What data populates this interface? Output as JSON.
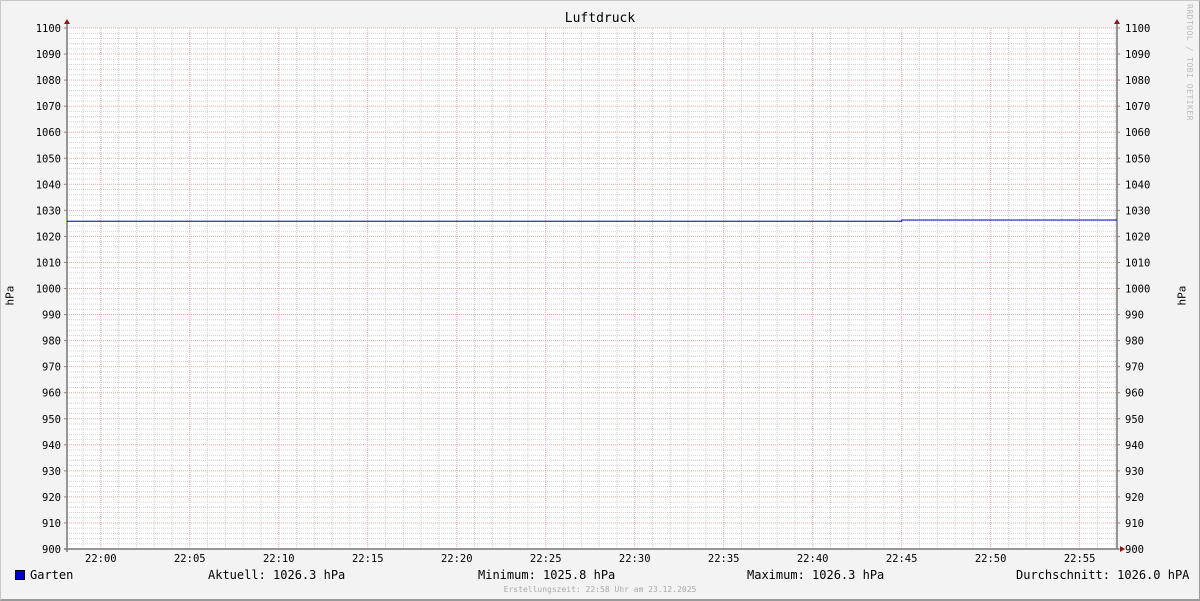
{
  "chart_data": {
    "type": "line",
    "title": "Luftdruck",
    "ylabel": "hPa",
    "ylabel_right": "hPa",
    "ylim": [
      900,
      1100
    ],
    "y_ticks": [
      900,
      910,
      920,
      930,
      940,
      950,
      960,
      970,
      980,
      990,
      1000,
      1010,
      1020,
      1030,
      1040,
      1050,
      1060,
      1070,
      1080,
      1090,
      1100
    ],
    "xlim": [
      "21:58",
      "22:57"
    ],
    "x_ticks": [
      "22:00",
      "22:05",
      "22:10",
      "22:15",
      "22:20",
      "22:25",
      "22:30",
      "22:35",
      "22:40",
      "22:45",
      "22:50",
      "22:55"
    ],
    "grid": true,
    "series": [
      {
        "name": "Garten",
        "color": "#0000cc",
        "x": [
          "21:58",
          "22:45",
          "22:45",
          "22:57"
        ],
        "values": [
          1025.8,
          1025.8,
          1026.3,
          1026.3
        ]
      }
    ],
    "legend": {
      "name": "Garten",
      "aktuell": "Aktuell: 1026.3 hPa",
      "minimum": "Minimum: 1025.8 hPa",
      "maximum": "Maximum: 1026.3 hPa",
      "durchschnitt": "Durchschnitt: 1026.0 hPA"
    },
    "footer": "Erstellungszeit: 22:58 Uhr am 23.12.2025",
    "watermark": "RRDTOOL / TOBI OETIKER"
  }
}
